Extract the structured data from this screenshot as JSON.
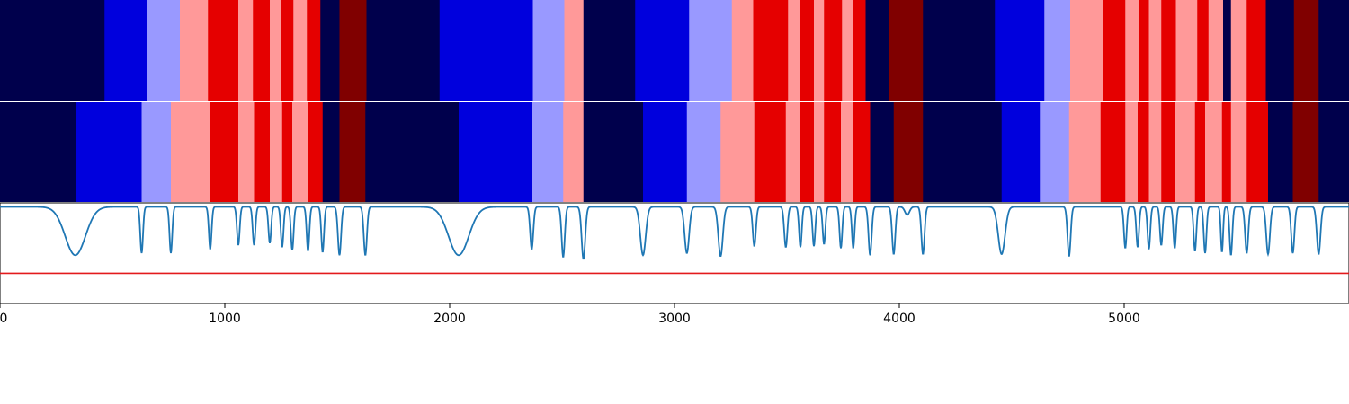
{
  "chart_data": {
    "type": "heatmap",
    "xlim": [
      0,
      6000
    ],
    "xticks": [
      "0",
      "1000",
      "2000",
      "3000",
      "4000",
      "5000"
    ],
    "palette": {
      "darknavy": "#00004c",
      "blue": "#0000dd",
      "lightblue": "#9999ff",
      "pink": "#ff9999",
      "red": "#e50000",
      "darkred": "#800000",
      "curve": "#1f77b4",
      "threshold": "#e31a1c"
    },
    "rows": [
      {
        "segments": [
          [
            0,
            465,
            "darknavy"
          ],
          [
            465,
            655,
            "blue"
          ],
          [
            655,
            800,
            "lightblue"
          ],
          [
            800,
            925,
            "pink"
          ],
          [
            925,
            1060,
            "red"
          ],
          [
            1060,
            1125,
            "pink"
          ],
          [
            1125,
            1200,
            "red"
          ],
          [
            1200,
            1250,
            "pink"
          ],
          [
            1250,
            1305,
            "red"
          ],
          [
            1305,
            1365,
            "pink"
          ],
          [
            1365,
            1425,
            "red"
          ],
          [
            1425,
            1510,
            "darknavy"
          ],
          [
            1510,
            1630,
            "darkred"
          ],
          [
            1630,
            1955,
            "darknavy"
          ],
          [
            1955,
            2370,
            "blue"
          ],
          [
            2370,
            2510,
            "lightblue"
          ],
          [
            2510,
            2595,
            "pink"
          ],
          [
            2595,
            2825,
            "darknavy"
          ],
          [
            2825,
            3065,
            "blue"
          ],
          [
            3065,
            3255,
            "lightblue"
          ],
          [
            3255,
            3350,
            "pink"
          ],
          [
            3350,
            3505,
            "red"
          ],
          [
            3505,
            3560,
            "pink"
          ],
          [
            3560,
            3620,
            "red"
          ],
          [
            3620,
            3665,
            "pink"
          ],
          [
            3665,
            3745,
            "red"
          ],
          [
            3745,
            3795,
            "pink"
          ],
          [
            3795,
            3850,
            "red"
          ],
          [
            3850,
            3955,
            "darknavy"
          ],
          [
            3955,
            4105,
            "darkred"
          ],
          [
            4105,
            4425,
            "darknavy"
          ],
          [
            4425,
            4645,
            "blue"
          ],
          [
            4645,
            4760,
            "lightblue"
          ],
          [
            4760,
            4905,
            "pink"
          ],
          [
            4905,
            5005,
            "red"
          ],
          [
            5005,
            5065,
            "pink"
          ],
          [
            5065,
            5110,
            "red"
          ],
          [
            5110,
            5165,
            "pink"
          ],
          [
            5165,
            5230,
            "red"
          ],
          [
            5230,
            5325,
            "pink"
          ],
          [
            5325,
            5375,
            "red"
          ],
          [
            5375,
            5440,
            "pink"
          ],
          [
            5440,
            5475,
            "darknavy"
          ],
          [
            5475,
            5545,
            "pink"
          ],
          [
            5545,
            5630,
            "red"
          ],
          [
            5630,
            5755,
            "darknavy"
          ],
          [
            5755,
            5865,
            "darkred"
          ],
          [
            5865,
            6000,
            "darknavy"
          ]
        ]
      },
      {
        "segments": [
          [
            0,
            340,
            "darknavy"
          ],
          [
            340,
            630,
            "blue"
          ],
          [
            630,
            760,
            "lightblue"
          ],
          [
            760,
            935,
            "pink"
          ],
          [
            935,
            1060,
            "red"
          ],
          [
            1060,
            1130,
            "pink"
          ],
          [
            1130,
            1200,
            "red"
          ],
          [
            1200,
            1255,
            "pink"
          ],
          [
            1255,
            1300,
            "red"
          ],
          [
            1300,
            1370,
            "pink"
          ],
          [
            1370,
            1435,
            "red"
          ],
          [
            1435,
            1510,
            "darknavy"
          ],
          [
            1510,
            1625,
            "darkred"
          ],
          [
            1625,
            2040,
            "darknavy"
          ],
          [
            2040,
            2365,
            "blue"
          ],
          [
            2365,
            2505,
            "lightblue"
          ],
          [
            2505,
            2595,
            "pink"
          ],
          [
            2595,
            2860,
            "darknavy"
          ],
          [
            2860,
            3055,
            "blue"
          ],
          [
            3055,
            3205,
            "lightblue"
          ],
          [
            3205,
            3355,
            "pink"
          ],
          [
            3355,
            3495,
            "red"
          ],
          [
            3495,
            3560,
            "pink"
          ],
          [
            3560,
            3620,
            "red"
          ],
          [
            3620,
            3665,
            "pink"
          ],
          [
            3665,
            3740,
            "red"
          ],
          [
            3740,
            3795,
            "pink"
          ],
          [
            3795,
            3870,
            "red"
          ],
          [
            3870,
            3975,
            "darknavy"
          ],
          [
            3975,
            4105,
            "darkred"
          ],
          [
            4105,
            4455,
            "darknavy"
          ],
          [
            4455,
            4625,
            "blue"
          ],
          [
            4625,
            4755,
            "lightblue"
          ],
          [
            4755,
            4895,
            "pink"
          ],
          [
            4895,
            5005,
            "red"
          ],
          [
            5005,
            5060,
            "pink"
          ],
          [
            5060,
            5110,
            "red"
          ],
          [
            5110,
            5165,
            "pink"
          ],
          [
            5165,
            5225,
            "red"
          ],
          [
            5225,
            5315,
            "pink"
          ],
          [
            5315,
            5360,
            "red"
          ],
          [
            5360,
            5435,
            "pink"
          ],
          [
            5435,
            5475,
            "red"
          ],
          [
            5475,
            5545,
            "pink"
          ],
          [
            5545,
            5640,
            "red"
          ],
          [
            5640,
            5750,
            "darknavy"
          ],
          [
            5750,
            5865,
            "darkred"
          ],
          [
            5865,
            6000,
            "darknavy"
          ]
        ]
      }
    ],
    "line": {
      "ylim": [
        0,
        1
      ],
      "threshold": 0.3,
      "baseline": 0.96,
      "dips": [
        [
          335,
          0.48,
          45
        ],
        [
          630,
          0.5,
          6
        ],
        [
          760,
          0.5,
          6
        ],
        [
          935,
          0.54,
          6
        ],
        [
          1060,
          0.58,
          6
        ],
        [
          1130,
          0.58,
          6
        ],
        [
          1200,
          0.6,
          6
        ],
        [
          1255,
          0.56,
          6
        ],
        [
          1300,
          0.53,
          6
        ],
        [
          1370,
          0.52,
          6
        ],
        [
          1435,
          0.51,
          6
        ],
        [
          1510,
          0.48,
          7
        ],
        [
          1625,
          0.48,
          7
        ],
        [
          2040,
          0.48,
          45
        ],
        [
          2365,
          0.54,
          7
        ],
        [
          2505,
          0.46,
          7
        ],
        [
          2595,
          0.44,
          8
        ],
        [
          2860,
          0.48,
          12
        ],
        [
          3055,
          0.5,
          10
        ],
        [
          3205,
          0.47,
          10
        ],
        [
          3355,
          0.57,
          7
        ],
        [
          3495,
          0.56,
          7
        ],
        [
          3560,
          0.56,
          6
        ],
        [
          3620,
          0.57,
          6
        ],
        [
          3665,
          0.59,
          6
        ],
        [
          3740,
          0.55,
          6
        ],
        [
          3795,
          0.55,
          6
        ],
        [
          3870,
          0.48,
          7
        ],
        [
          3975,
          0.49,
          7
        ],
        [
          4035,
          0.88,
          10
        ],
        [
          4105,
          0.49,
          7
        ],
        [
          4455,
          0.49,
          15
        ],
        [
          4755,
          0.47,
          7
        ],
        [
          5005,
          0.55,
          6
        ],
        [
          5060,
          0.56,
          6
        ],
        [
          5110,
          0.54,
          6
        ],
        [
          5165,
          0.58,
          6
        ],
        [
          5225,
          0.55,
          6
        ],
        [
          5315,
          0.52,
          6
        ],
        [
          5360,
          0.5,
          6
        ],
        [
          5435,
          0.51,
          5
        ],
        [
          5475,
          0.48,
          6
        ],
        [
          5545,
          0.5,
          7
        ],
        [
          5640,
          0.49,
          8
        ],
        [
          5750,
          0.5,
          7
        ],
        [
          5865,
          0.49,
          8
        ]
      ]
    }
  }
}
